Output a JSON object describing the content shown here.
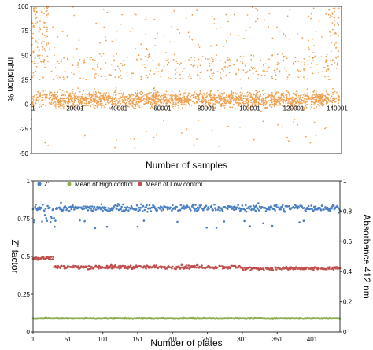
{
  "chart_data": [
    {
      "type": "scatter",
      "title": "",
      "xlabel": "Number of samples",
      "ylabel": "Inhibition %",
      "xlim": [
        1,
        142000
      ],
      "ylim": [
        -50,
        100
      ],
      "x_ticks": [
        "1",
        "20001",
        "40001",
        "60001",
        "80001",
        "100001",
        "120001",
        "140001"
      ],
      "y_ticks": [
        "-50",
        "-25",
        "0",
        "25",
        "50",
        "75",
        "100"
      ],
      "x_tick_values": [
        1,
        20001,
        40001,
        60001,
        80001,
        100001,
        120001,
        140001
      ],
      "y_tick_values": [
        -50,
        -25,
        0,
        25,
        50,
        75,
        100
      ],
      "grid": false,
      "colors": {
        "points": "#f0a050"
      },
      "summary": {
        "dense_band_low": -15,
        "dense_band_high": 25,
        "center": 5,
        "outlier_max": 100,
        "outlier_min": -45
      }
    },
    {
      "type": "scatter",
      "title": "",
      "xlabel": "Number of plates",
      "ylabel": "Z' factor",
      "ylabel_right": "Absorbance 412 nm",
      "xlim": [
        1,
        441
      ],
      "ylim": [
        0,
        1
      ],
      "y2lim": [
        0,
        1
      ],
      "x_ticks": [
        "1",
        "51",
        "101",
        "151",
        "201",
        "251",
        "301",
        "351",
        "401"
      ],
      "y_ticks": [
        "0",
        "0.25",
        "0.5",
        "0.75",
        "1"
      ],
      "y2_ticks": [
        "0",
        "0.2",
        "0.4",
        "0.6",
        "0.8",
        "1"
      ],
      "x_tick_values": [
        1,
        51,
        101,
        151,
        201,
        251,
        301,
        351,
        401
      ],
      "y_tick_values": [
        0,
        0.25,
        0.5,
        0.75,
        1
      ],
      "y2_tick_values": [
        0,
        0.2,
        0.4,
        0.6,
        0.8,
        1
      ],
      "legend_position": "top-left",
      "series": [
        {
          "name": "Z'",
          "color": "#4a7fc1",
          "axis": "left",
          "typical": 0.82,
          "min_dip": 0.68
        },
        {
          "name": "Mean of High control",
          "color": "#8cb050",
          "axis": "right",
          "typical": 0.09
        },
        {
          "name": "Mean of Low control",
          "color": "#c0504d",
          "axis": "right",
          "segments": [
            {
              "x_start": 1,
              "x_end": 30,
              "y": 0.49
            },
            {
              "x_start": 31,
              "x_end": 301,
              "y": 0.43
            },
            {
              "x_start": 302,
              "x_end": 441,
              "y": 0.42
            }
          ]
        }
      ]
    }
  ]
}
